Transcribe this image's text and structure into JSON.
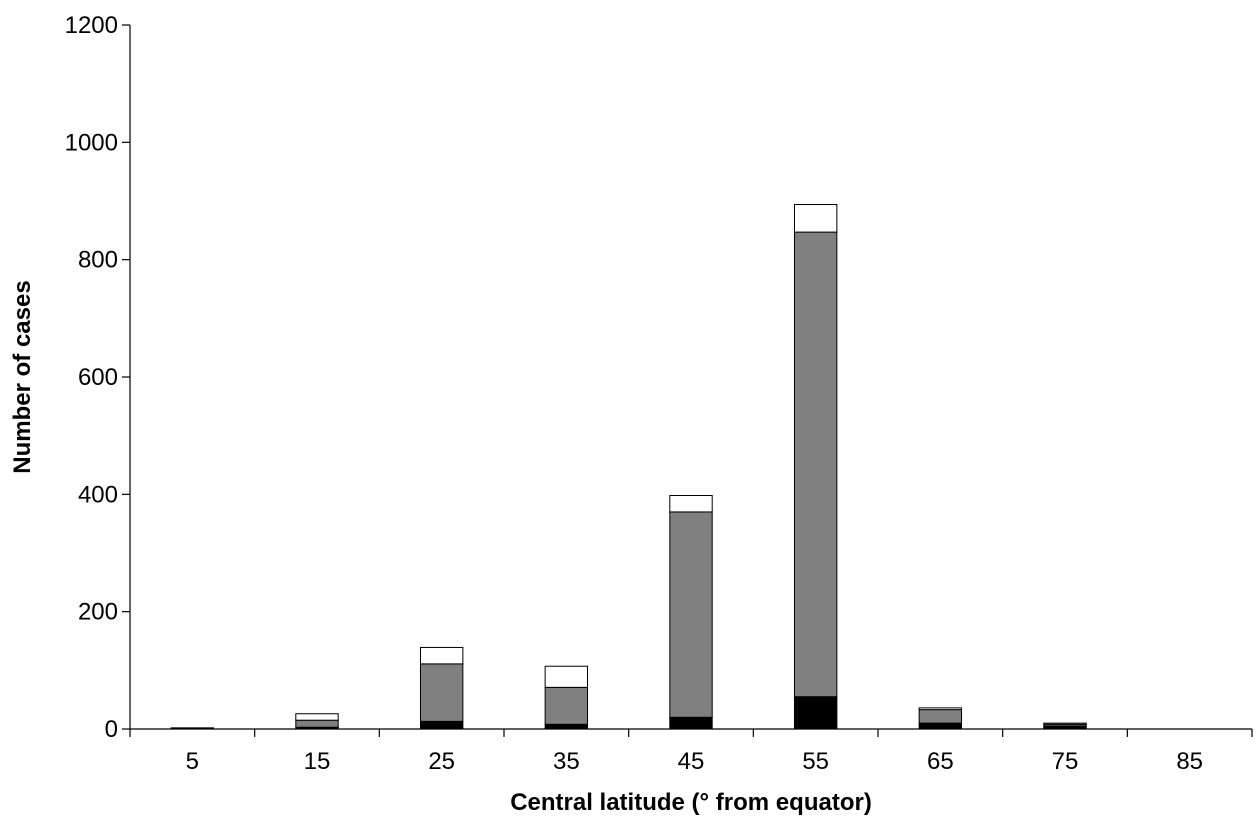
{
  "chart_data": {
    "type": "bar",
    "stacked": true,
    "categories": [
      "5",
      "15",
      "25",
      "35",
      "45",
      "55",
      "65",
      "75",
      "85"
    ],
    "series": [
      {
        "color": "#000000",
        "values": [
          2,
          3,
          13,
          8,
          20,
          55,
          10,
          5,
          0
        ]
      },
      {
        "color": "#808080",
        "values": [
          0,
          12,
          98,
          63,
          350,
          792,
          23,
          3,
          0
        ]
      },
      {
        "color": "#ffffff",
        "values": [
          0,
          11,
          28,
          36,
          28,
          47,
          3,
          2,
          0
        ]
      }
    ],
    "title": "",
    "xlabel": "Central latitude (° from equator)",
    "ylabel": "Number of cases",
    "ylim": [
      0,
      1200
    ],
    "yticks": [
      0,
      200,
      400,
      600,
      800,
      1000,
      1200
    ],
    "grid": false,
    "legend": "none"
  }
}
